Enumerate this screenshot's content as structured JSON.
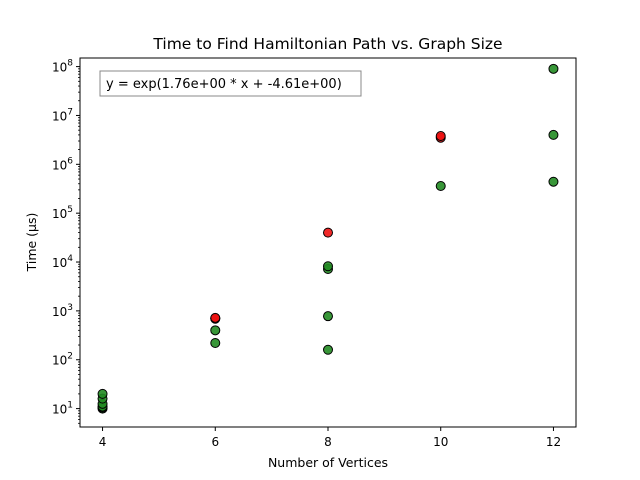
{
  "chart_data": {
    "type": "scatter",
    "title": "Time to Find Hamiltonian Path vs. Graph Size",
    "xlabel": "Number of Vertices",
    "ylabel": "Time (µs)",
    "annotation": "y = exp(1.76e+00 * x + -4.61e+00)",
    "xlim": [
      3.6,
      12.4
    ],
    "ylim": [
      4.2,
      150000000
    ],
    "yscale": "log",
    "x_ticks": [
      4,
      6,
      8,
      10,
      12
    ],
    "y_ticks": [
      {
        "base": "10",
        "exp": "1",
        "value": 10
      },
      {
        "base": "10",
        "exp": "2",
        "value": 100
      },
      {
        "base": "10",
        "exp": "3",
        "value": 1000
      },
      {
        "base": "10",
        "exp": "4",
        "value": 10000
      },
      {
        "base": "10",
        "exp": "5",
        "value": 100000
      },
      {
        "base": "10",
        "exp": "6",
        "value": 1000000
      },
      {
        "base": "10",
        "exp": "7",
        "value": 10000000
      },
      {
        "base": "10",
        "exp": "8",
        "value": 100000000
      }
    ],
    "grid": false,
    "legend": "none",
    "colors": {
      "green": "#228B22",
      "red": "#EE1111"
    },
    "series": [
      {
        "color": "green",
        "points": [
          {
            "x": 4,
            "y": 10
          },
          {
            "x": 4,
            "y": 10.5
          },
          {
            "x": 4,
            "y": 11
          },
          {
            "x": 4,
            "y": 12.5
          },
          {
            "x": 4,
            "y": 16
          },
          {
            "x": 4,
            "y": 20
          },
          {
            "x": 6,
            "y": 220
          },
          {
            "x": 6,
            "y": 400
          },
          {
            "x": 6,
            "y": 700
          },
          {
            "x": 8,
            "y": 160
          },
          {
            "x": 8,
            "y": 780
          },
          {
            "x": 8,
            "y": 7200
          },
          {
            "x": 8,
            "y": 8200
          },
          {
            "x": 10,
            "y": 360000
          },
          {
            "x": 12,
            "y": 440000
          },
          {
            "x": 12,
            "y": 4000000
          },
          {
            "x": 12,
            "y": 90000000
          }
        ]
      },
      {
        "color": "red",
        "points": [
          {
            "x": 6,
            "y": 690
          },
          {
            "x": 6,
            "y": 720
          },
          {
            "x": 8,
            "y": 40000
          },
          {
            "x": 10,
            "y": 3500000
          },
          {
            "x": 10,
            "y": 3800000
          }
        ]
      }
    ]
  }
}
